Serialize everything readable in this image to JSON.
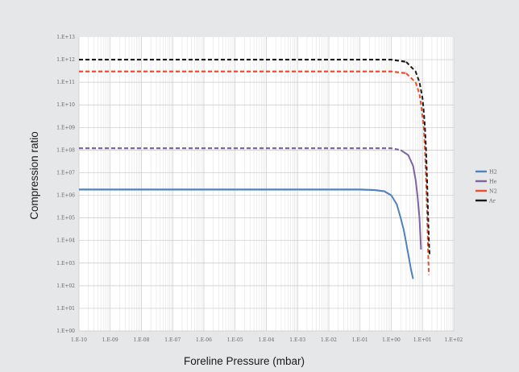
{
  "chart_data": {
    "type": "line",
    "title": "",
    "xlabel": "Foreline Pressure (mbar)",
    "ylabel": "Compression ratio",
    "x_scale": "log",
    "y_scale": "log",
    "xlim": [
      1e-10,
      100
    ],
    "ylim": [
      1,
      10000000000000.0
    ],
    "grid": true,
    "legend_position": "right",
    "x_tick_labels": [
      "1.E-10",
      "1.E-09",
      "1.E-08",
      "1.E-07",
      "1.E-06",
      "1.E-05",
      "1.E-04",
      "1.E-03",
      "1.E-02",
      "1.E-01",
      "1.E+00",
      "1.E+01",
      "1.E+02"
    ],
    "y_tick_labels": [
      "1.E+00",
      "1.E+01",
      "1.E+02",
      "1.E+03",
      "1.E+04",
      "1.E+05",
      "1.E+06",
      "1.E+07",
      "1.E+08",
      "1.E+09",
      "1.E+10",
      "1.E+11",
      "1.E+12",
      "1.E+13"
    ],
    "series": [
      {
        "name": "H2",
        "color": "#4f81bd",
        "x": [
          1e-10,
          0.1,
          0.3,
          0.6,
          1.0,
          1.5,
          2.0,
          2.5,
          3.0,
          3.6,
          4.2,
          5.0
        ],
        "y": [
          1800000.0,
          1800000.0,
          1700000.0,
          1500000.0,
          1000000.0,
          400000.0,
          100000.0,
          30000.0,
          8000.0,
          2000.0,
          600.0,
          200.0
        ]
      },
      {
        "name": "He",
        "color": "#8064a2",
        "x": [
          1e-10,
          1.0,
          2.0,
          3.5,
          5.0,
          6.0,
          7.0,
          8.0,
          9.0
        ],
        "y": [
          120000000.0,
          120000000.0,
          100000000.0,
          60000000.0,
          20000000.0,
          5000000.0,
          800000.0,
          100000.0,
          4000.0
        ]
      },
      {
        "name": "N2",
        "color": "#e8502e",
        "x": [
          1e-10,
          1.0,
          3.0,
          6.0,
          8.0,
          9.0,
          10.0,
          11.0,
          12.0,
          13.0,
          14.0,
          15.0,
          16.0
        ],
        "y": [
          300000000000.0,
          300000000000.0,
          250000000000.0,
          100000000000.0,
          30000000000.0,
          10000000000.0,
          3000000000.0,
          1000000000.0,
          100000000.0,
          5000000.0,
          200000.0,
          5000.0,
          300.0
        ]
      },
      {
        "name": "Ar",
        "color": "#1a1a1a",
        "x": [
          1e-10,
          1.0,
          3.0,
          6.0,
          8.0,
          10.0,
          11.0,
          12.0,
          13.0,
          14.0,
          15.0,
          16.0,
          17.0
        ],
        "y": [
          1000000000000.0,
          1000000000000.0,
          800000000000.0,
          300000000000.0,
          100000000000.0,
          20000000000.0,
          5000000000.0,
          1000000000.0,
          100000000.0,
          5000000.0,
          200000.0,
          10000.0,
          2000.0
        ]
      }
    ]
  }
}
